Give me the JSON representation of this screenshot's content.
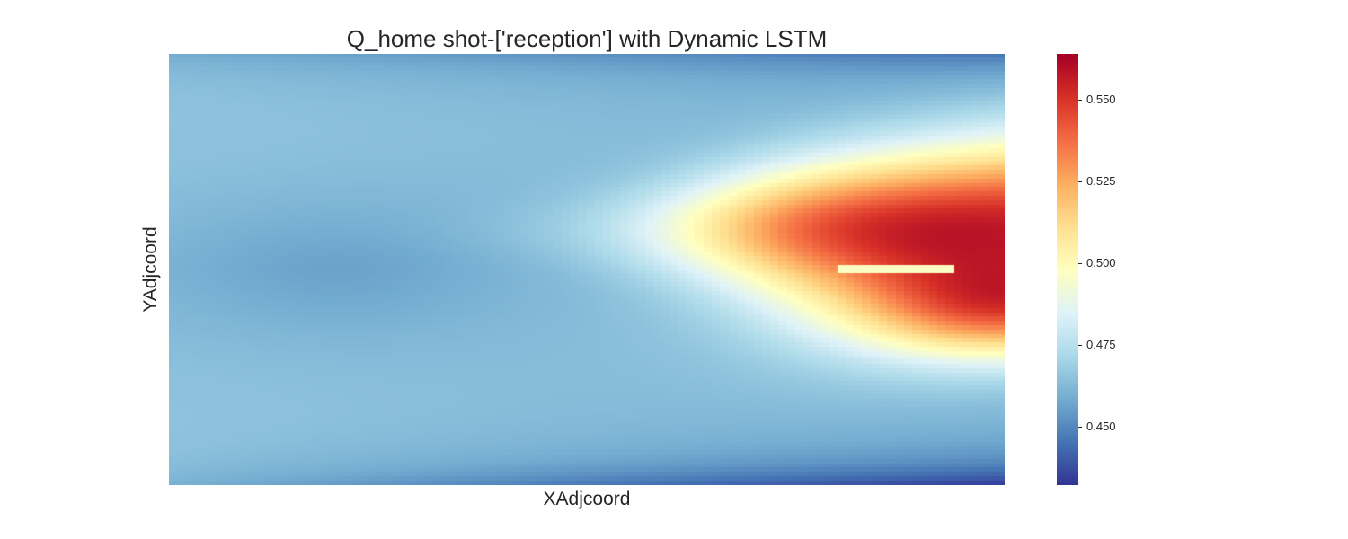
{
  "chart_data": {
    "type": "heatmap",
    "title": "Q_home shot-['reception'] with Dynamic LSTM",
    "xlabel": "XAdjcoord",
    "ylabel": "YAdjcoord",
    "colormap": "RdYlBu_r",
    "color_range": [
      0.432,
      0.564
    ],
    "colorbar_ticks": [
      "0.450",
      "0.475",
      "0.500",
      "0.525",
      "0.550"
    ],
    "colorbar_tick_values": [
      0.45,
      0.475,
      0.5,
      0.525,
      0.55
    ],
    "grid": false,
    "resolution": {
      "columns": 100,
      "rows": 100
    },
    "features": [
      {
        "description": "hotspot",
        "x_frac": 0.96,
        "y_frac": 0.4,
        "value": 0.564
      },
      {
        "description": "lower warm lobe",
        "x_frac": 0.9,
        "y_frac": 0.55,
        "value": 0.515
      },
      {
        "description": "cool band left-centre",
        "x_frac": 0.25,
        "y_frac": 0.5,
        "value": 0.462
      },
      {
        "description": "edge minimum bottom-right",
        "x_frac": 1.0,
        "y_frac": 1.0,
        "value": 0.432
      }
    ]
  },
  "colorbar": {
    "colors": [
      "#313695",
      "#4575b4",
      "#74add1",
      "#abd9e9",
      "#e0f3f8",
      "#ffffbf",
      "#fee090",
      "#fdae61",
      "#f46d43",
      "#d73027",
      "#a50026"
    ]
  }
}
